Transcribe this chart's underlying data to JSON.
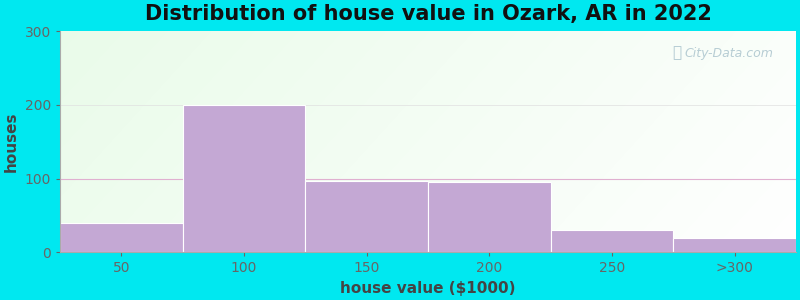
{
  "title": "Distribution of house value in Ozark, AR in 2022",
  "xlabel": "house value ($1000)",
  "ylabel": "houses",
  "bar_labels": [
    "50",
    "100",
    "150",
    "200",
    "250",
    ">300"
  ],
  "bar_heights": [
    40,
    200,
    97,
    95,
    30,
    20
  ],
  "bar_color": "#c4a8d4",
  "bar_edgecolor": "#ffffff",
  "ylim": [
    0,
    300
  ],
  "yticks": [
    0,
    100,
    200,
    300
  ],
  "background_outer": "#00e8f0",
  "title_fontsize": 15,
  "axis_label_fontsize": 11,
  "tick_fontsize": 10,
  "watermark_text": "City-Data.com",
  "grid_color": "#e0b8e0",
  "n_bars": 6
}
